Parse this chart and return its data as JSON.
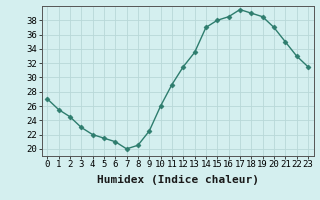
{
  "x": [
    0,
    1,
    2,
    3,
    4,
    5,
    6,
    7,
    8,
    9,
    10,
    11,
    12,
    13,
    14,
    15,
    16,
    17,
    18,
    19,
    20,
    21,
    22,
    23
  ],
  "y": [
    27,
    25.5,
    24.5,
    23,
    22,
    21.5,
    21,
    20,
    20.5,
    22.5,
    26,
    29,
    31.5,
    33.5,
    37,
    38,
    38.5,
    39.5,
    39,
    38.5,
    37,
    35,
    33,
    31.5
  ],
  "xlabel": "Humidex (Indice chaleur)",
  "ylabel": "",
  "ylim": [
    19,
    40
  ],
  "xlim": [
    -0.5,
    23.5
  ],
  "yticks": [
    20,
    22,
    24,
    26,
    28,
    30,
    32,
    34,
    36,
    38
  ],
  "xticks": [
    0,
    1,
    2,
    3,
    4,
    5,
    6,
    7,
    8,
    9,
    10,
    11,
    12,
    13,
    14,
    15,
    16,
    17,
    18,
    19,
    20,
    21,
    22,
    23
  ],
  "line_color": "#2e7d6e",
  "marker": "D",
  "marker_size": 2.5,
  "bg_color": "#d4efef",
  "grid_color": "#b8d8d8",
  "border_color": "#555555",
  "xlabel_fontsize": 8,
  "ytick_fontsize": 6.5,
  "xtick_fontsize": 6.5
}
